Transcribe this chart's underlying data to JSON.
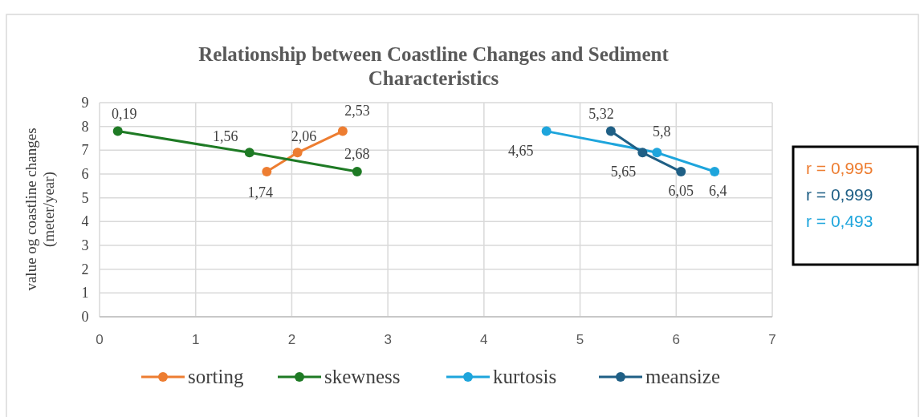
{
  "chart_data": {
    "type": "line",
    "title": "Relationship between Coastline Changes and Sediment Characteristics",
    "ylabel": "value og coastline changes (meter/year)",
    "xlim": [
      0,
      7
    ],
    "xticks": [
      0,
      1,
      2,
      3,
      4,
      5,
      6,
      7
    ],
    "ylim": [
      0,
      9
    ],
    "yticks": [
      0,
      1,
      2,
      3,
      4,
      5,
      6,
      7,
      8,
      9
    ],
    "grid": true,
    "legend": "bottom",
    "marker": "circle",
    "line_style": "solid",
    "series": [
      {
        "name": "sorting",
        "color": "#ed7d31",
        "x": [
          1.74,
          2.06,
          2.53
        ],
        "values": [
          6.1,
          6.9,
          7.8
        ]
      },
      {
        "name": "skewness",
        "color": "#1e7a24",
        "x": [
          0.19,
          1.56,
          2.68
        ],
        "values": [
          7.8,
          6.9,
          6.1
        ]
      },
      {
        "name": "kurtosis",
        "color": "#1ea5dc",
        "x": [
          4.65,
          5.8,
          6.4
        ],
        "values": [
          7.8,
          6.9,
          6.1
        ]
      },
      {
        "name": "meansize",
        "color": "#1f5f85",
        "x": [
          5.32,
          5.65,
          6.05
        ],
        "values": [
          7.8,
          6.9,
          6.1
        ]
      }
    ],
    "annotations": [
      "r = 0,995",
      "r = 0,999",
      "r = 0,493",
      {
        "text": "1,74",
        "x": 1.74,
        "y": 6.1
      },
      {
        "text": "2,06",
        "x": 2.06,
        "y": 6.9
      },
      {
        "text": "2,53",
        "x": 2.53,
        "y": 7.8
      },
      {
        "text": "0,19",
        "x": 0.19,
        "y": 7.8
      },
      {
        "text": "1,56",
        "x": 1.56,
        "y": 6.9
      },
      {
        "text": "2,68",
        "x": 2.68,
        "y": 6.1
      },
      {
        "text": "4,65",
        "x": 4.65,
        "y": 7.8
      },
      {
        "text": "5,8",
        "x": 5.8,
        "y": 6.9
      },
      {
        "text": "6,4",
        "x": 6.4,
        "y": 6.1
      },
      {
        "text": "5,32",
        "x": 5.32,
        "y": 7.8
      },
      {
        "text": "5,65",
        "x": 5.65,
        "y": 6.9
      },
      {
        "text": "6,05",
        "x": 6.05,
        "y": 6.1
      }
    ]
  }
}
